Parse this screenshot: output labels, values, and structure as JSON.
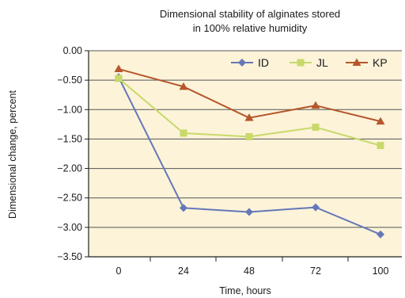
{
  "chart_data": {
    "type": "line",
    "title": [
      "Dimensional stability of alginates stored",
      "in 100% relative humidity"
    ],
    "xlabel": "Time, hours",
    "ylabel": "Dimensional change, percent",
    "categories": [
      "0",
      "24",
      "48",
      "72",
      "100"
    ],
    "ylim": [
      -3.5,
      0
    ],
    "yticks": [
      0,
      -0.5,
      -1.0,
      -1.5,
      -2.0,
      -2.5,
      -3.0,
      -3.5
    ],
    "ytick_labels": [
      "0.00",
      "−0.50",
      "−1.00",
      "−1.50",
      "−2.00",
      "−2.50",
      "−3.00",
      "−3.50"
    ],
    "grid": "horizontal",
    "legend_position": "top-right",
    "plot_background": "#fcf3d9",
    "series": [
      {
        "name": "ID",
        "marker": "diamond",
        "color": "#6577b8",
        "values": [
          -0.45,
          -2.67,
          -2.74,
          -2.66,
          -3.12
        ]
      },
      {
        "name": "JL",
        "marker": "square",
        "color": "#c8d96a",
        "values": [
          -0.47,
          -1.4,
          -1.46,
          -1.3,
          -1.61
        ]
      },
      {
        "name": "KP",
        "marker": "triangle",
        "color": "#b5562b",
        "values": [
          -0.31,
          -0.61,
          -1.14,
          -0.93,
          -1.2
        ]
      }
    ]
  }
}
